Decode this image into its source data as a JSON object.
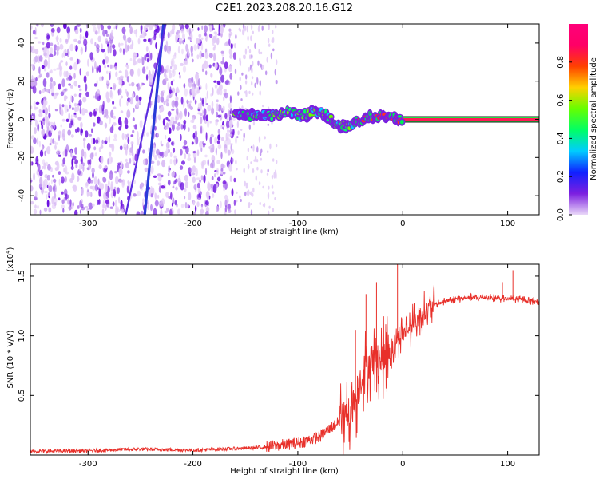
{
  "title": "C2E1.2023.208.20.16.G12",
  "chart_data": [
    {
      "type": "heatmap",
      "xlabel": "Height of straight line (km)",
      "ylabel": "Frequency (Hz)",
      "xlim": [
        -355,
        130
      ],
      "ylim": [
        -50,
        50
      ],
      "xticks": [
        -300,
        -200,
        -100,
        0,
        100
      ],
      "yticks": [
        -40,
        -20,
        0,
        20,
        40
      ],
      "colorbar": {
        "label": "Normalized spectral amplitude",
        "range": [
          0,
          1
        ],
        "ticks": [
          "0.0",
          "0.2",
          "0.4",
          "0.6",
          "0.8"
        ],
        "tick_values": [
          0,
          0.2,
          0.4,
          0.6,
          0.8
        ],
        "colors": [
          "#e9d8f8",
          "#7c1fe0",
          "#1020ff",
          "#00ccff",
          "#00ff66",
          "#66ff00",
          "#ffd000",
          "#ff4000",
          "#ff0066",
          "#ff007a"
        ]
      },
      "features": {
        "noise_region_x": [
          -355,
          -160
        ],
        "sparse_region_x": [
          -160,
          -120
        ],
        "diagonal_lines": [
          {
            "x": [
              -246,
              -228
            ],
            "y": [
              -50,
              50
            ]
          },
          {
            "x": [
              -264,
              -226
            ],
            "y": [
              -50,
              50
            ]
          }
        ],
        "center_line_x": [
          0,
          130
        ],
        "center_line_y": 0,
        "blob_track": [
          {
            "x": -160,
            "y": 3
          },
          {
            "x": -148,
            "y": 2
          },
          {
            "x": -138,
            "y": 3
          },
          {
            "x": -125,
            "y": 2
          },
          {
            "x": -110,
            "y": 4
          },
          {
            "x": -95,
            "y": 2
          },
          {
            "x": -82,
            "y": 4
          },
          {
            "x": -72,
            "y": 2
          },
          {
            "x": -62,
            "y": -3
          },
          {
            "x": -52,
            "y": -4
          },
          {
            "x": -42,
            "y": -1
          },
          {
            "x": -32,
            "y": 1
          },
          {
            "x": -22,
            "y": 2
          },
          {
            "x": -10,
            "y": 1
          },
          {
            "x": 0,
            "y": 0
          }
        ]
      }
    },
    {
      "type": "line",
      "xlabel": "Height of straight line (km)",
      "ylabel": "SNR (10 * V/V)",
      "y_multiplier": "(x10",
      "y_multiplier_exp": "4",
      "y_multiplier_close": ")",
      "xlim": [
        -355,
        130
      ],
      "ylim": [
        0,
        1.6
      ],
      "xticks": [
        -300,
        -200,
        -100,
        0,
        100
      ],
      "yticks": [
        0.5,
        1.0,
        1.5
      ],
      "ytick_labels": [
        "0.5",
        "1.0",
        "1.5"
      ],
      "color": "#e8302a",
      "series": [
        {
          "x": [
            -355,
            -300,
            -250,
            -200,
            -170,
            -140,
            -120,
            -100,
            -80,
            -65,
            -55,
            -45,
            -38,
            -30,
            -20,
            -10,
            -5,
            10,
            20,
            30,
            45,
            60,
            80,
            100,
            130
          ],
          "y": [
            0.03,
            0.035,
            0.05,
            0.04,
            0.05,
            0.06,
            0.08,
            0.1,
            0.15,
            0.25,
            0.32,
            0.45,
            0.7,
            0.8,
            0.8,
            0.9,
            0.98,
            1.1,
            1.2,
            1.26,
            1.3,
            1.32,
            1.32,
            1.31,
            1.29
          ]
        }
      ]
    }
  ]
}
